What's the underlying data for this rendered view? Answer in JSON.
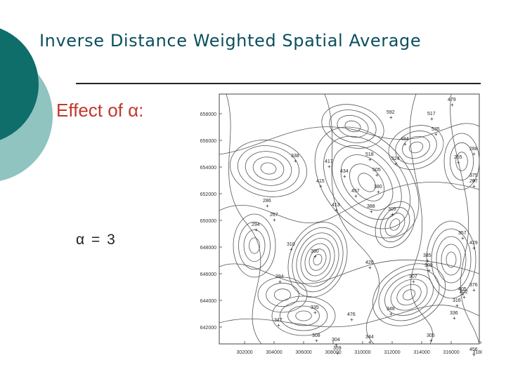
{
  "slide": {
    "title": "Inverse Distance Weighted Spatial Average",
    "subtitle": "Effect of α:",
    "alpha_label": "α = 3"
  },
  "map": {
    "y_ticks": [
      "658000",
      "656000",
      "654000",
      "652000",
      "650000",
      "648000",
      "646000",
      "644000",
      "642000"
    ],
    "x_ticks": [
      "302000",
      "304000",
      "306000",
      "308000",
      "310000",
      "312000",
      "314000",
      "316000",
      "318000"
    ],
    "station_values": [
      "479",
      "592",
      "517",
      "484",
      "535",
      "338",
      "417",
      "434",
      "518",
      "524",
      "505",
      "255",
      "288",
      "415",
      "457",
      "380",
      "375",
      "287",
      "286",
      "267",
      "413",
      "388",
      "305",
      "294",
      "357",
      "429",
      "376",
      "402",
      "420",
      "310",
      "385",
      "284",
      "390",
      "307",
      "309",
      "405",
      "476",
      "348",
      "305",
      "316",
      "336",
      "335",
      "347",
      "308",
      "304",
      "344",
      "456",
      "359"
    ]
  },
  "colors": {
    "teal": "#0f6d6a",
    "light_teal": "#8fc4c1",
    "title": "#0b4f5e",
    "subtitle": "#c0392b"
  }
}
